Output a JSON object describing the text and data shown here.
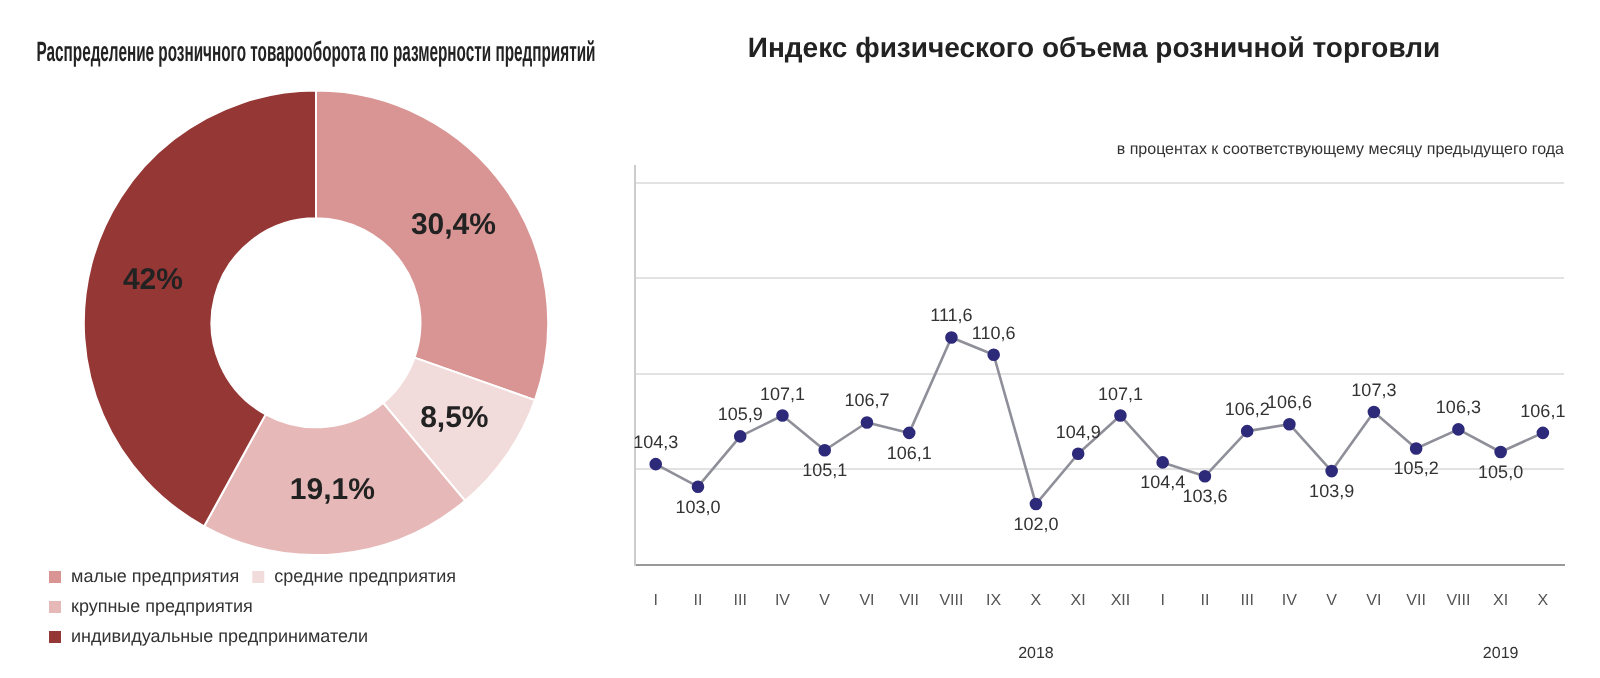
{
  "chart_data": [
    {
      "type": "donut",
      "title": "Распределение розничного товарооборота по размерности предприятий",
      "categories": [
        "малые предприятия",
        "средние предприятия",
        "крупные предприятия",
        "индивидуальные предприниматели"
      ],
      "values": [
        30.4,
        8.5,
        19.1,
        42
      ],
      "value_labels": [
        "30,4%",
        "8,5%",
        "19,1%",
        "42%"
      ],
      "colors": [
        "#d99594",
        "#f2dcdb",
        "#e6b9b8",
        "#953735"
      ],
      "legend": "bottom"
    },
    {
      "type": "line",
      "title": "Индекс физического объема розничной торговли",
      "categories": [
        "I",
        "II",
        "III",
        "IV",
        "V",
        "VI",
        "VII",
        "VIII",
        "IX",
        "X",
        "XI",
        "XII",
        "I",
        "II",
        "III",
        "IV",
        "V",
        "VI",
        "VII",
        "VIII",
        "XI",
        "X"
      ],
      "series": [
        {
          "color": "#2e2a7a",
          "values": [
            104.3,
            103.0,
            105.9,
            107.1,
            105.1,
            106.7,
            106.1,
            111.6,
            110.6,
            102.0,
            104.9,
            107.1,
            104.4,
            103.6,
            106.2,
            106.6,
            103.9,
            107.3,
            105.2,
            106.3,
            105.0,
            106.1
          ],
          "value_labels": [
            "104,3",
            "103,0",
            "105,9",
            "107,1",
            "105,1",
            "106,7",
            "106,1",
            "111,6",
            "110,6",
            "102,0",
            "104,9",
            "107,1",
            "104,4",
            "103,6",
            "106,2",
            "106,6",
            "103,9",
            "107,3",
            "105,2",
            "106,3",
            "105,0",
            "106,1"
          ]
        }
      ],
      "annotations": [
        "в процентах к соответствующему месяцу предыдущего года",
        "2018",
        "2019"
      ],
      "ylim": [
        98.5,
        121.5
      ],
      "yticks": [
        {
          "value": 104,
          "label": null
        },
        {
          "value": 109.5,
          "label": null
        },
        {
          "value": 115,
          "label": null
        },
        {
          "value": 120.5,
          "label": null
        }
      ],
      "grid": "y",
      "tick_labels": "x",
      "marker": "circle",
      "legend": false
    }
  ]
}
